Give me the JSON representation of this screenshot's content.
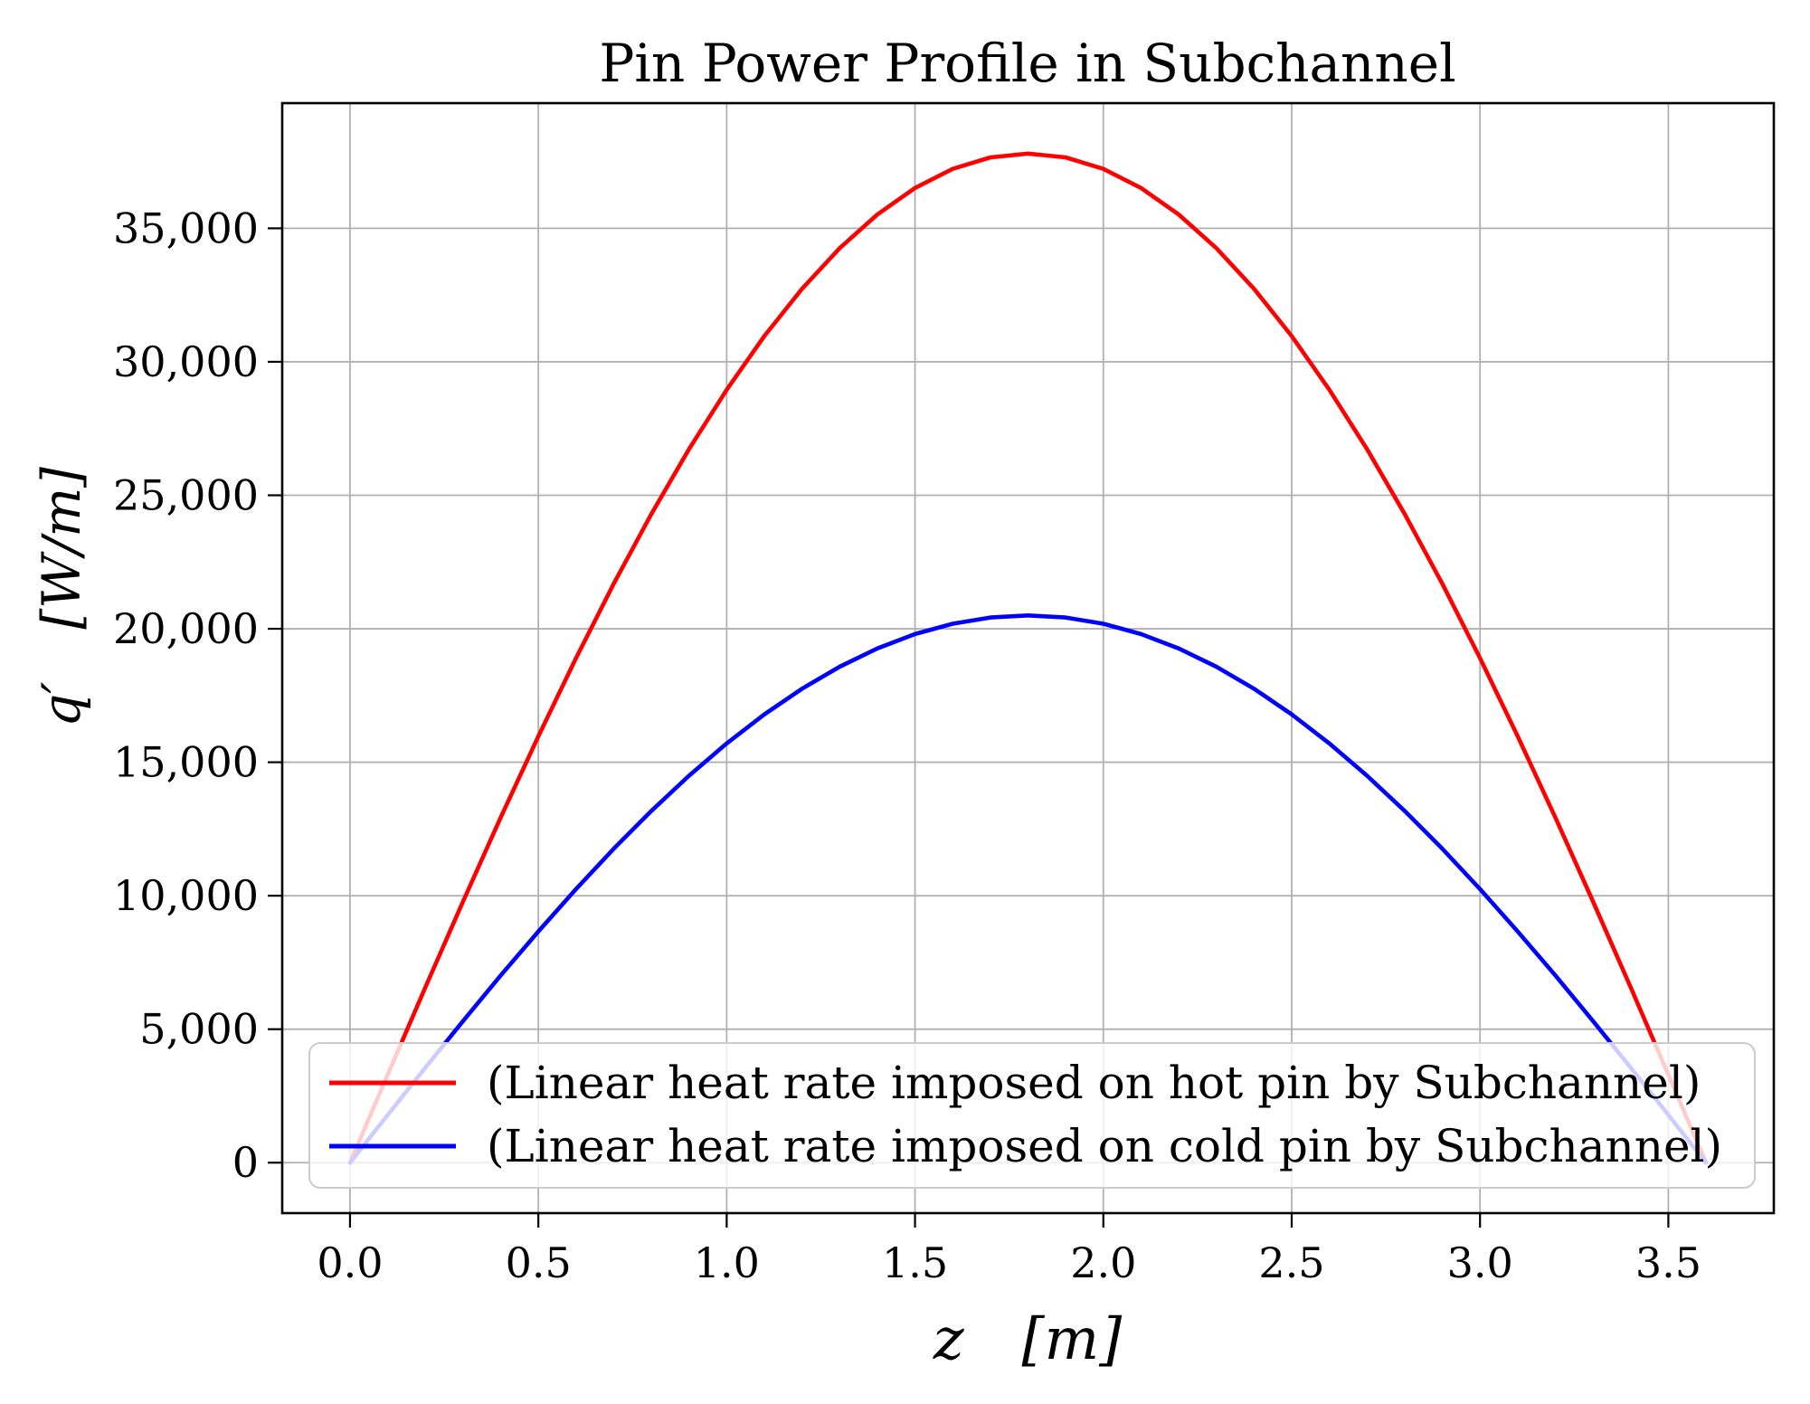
{
  "chart_data": {
    "type": "line",
    "title": "Pin Power Profile in Subchannel",
    "xlabel": "z  [m]",
    "ylabel": "q′  [W/m]",
    "xlim": [
      -0.18,
      3.78
    ],
    "ylim": [
      -1890,
      39690
    ],
    "grid": true,
    "legend_position": "lower left, wide box, semi-transparent",
    "xticks": [
      0.0,
      0.5,
      1.0,
      1.5,
      2.0,
      2.5,
      3.0,
      3.5
    ],
    "xtick_labels": [
      "0.0",
      "0.5",
      "1.0",
      "1.5",
      "2.0",
      "2.5",
      "3.0",
      "3.5"
    ],
    "yticks": [
      0,
      5000,
      10000,
      15000,
      20000,
      25000,
      30000,
      35000
    ],
    "ytick_labels": [
      "0",
      "5,000",
      "10,000",
      "15,000",
      "20,000",
      "25,000",
      "30,000",
      "35,000"
    ],
    "x": [
      0.0,
      0.1,
      0.2,
      0.3,
      0.4,
      0.5,
      0.6,
      0.7,
      0.8,
      0.9,
      1.0,
      1.1,
      1.2,
      1.3,
      1.4,
      1.5,
      1.6,
      1.7,
      1.8,
      1.9,
      2.0,
      2.1,
      2.2,
      2.3,
      2.4,
      2.5,
      2.6,
      2.7,
      2.8,
      2.9,
      3.0,
      3.1,
      3.2,
      3.3,
      3.4,
      3.5,
      3.6
    ],
    "series": [
      {
        "name": "(Linear heat rate imposed on hot pin by Subchannel)",
        "color": "#ff0000",
        "peak_value": 37800,
        "peak_z": 1.8,
        "values": [
          0,
          3295,
          6564,
          9783,
          12928,
          15975,
          18900,
          21681,
          24297,
          26729,
          28956,
          30964,
          32736,
          34259,
          35520,
          36512,
          37226,
          37656,
          37800,
          37656,
          37226,
          36512,
          35520,
          34259,
          32736,
          30964,
          28956,
          26729,
          24297,
          21681,
          18900,
          15975,
          12928,
          9783,
          6564,
          3295,
          0
        ]
      },
      {
        "name": "(Linear heat rate imposed on cold pin by Subchannel)",
        "color": "#0000ff",
        "peak_value": 20500,
        "peak_z": 1.8,
        "values": [
          0,
          1787,
          3560,
          5306,
          7011,
          8664,
          10250,
          11758,
          13177,
          14496,
          15704,
          16793,
          17754,
          18579,
          19264,
          19802,
          20189,
          20422,
          20500,
          20422,
          20189,
          19802,
          19264,
          18579,
          17754,
          16793,
          15704,
          14496,
          13177,
          11758,
          10250,
          8664,
          7011,
          5306,
          3560,
          1787,
          0
        ]
      }
    ]
  }
}
